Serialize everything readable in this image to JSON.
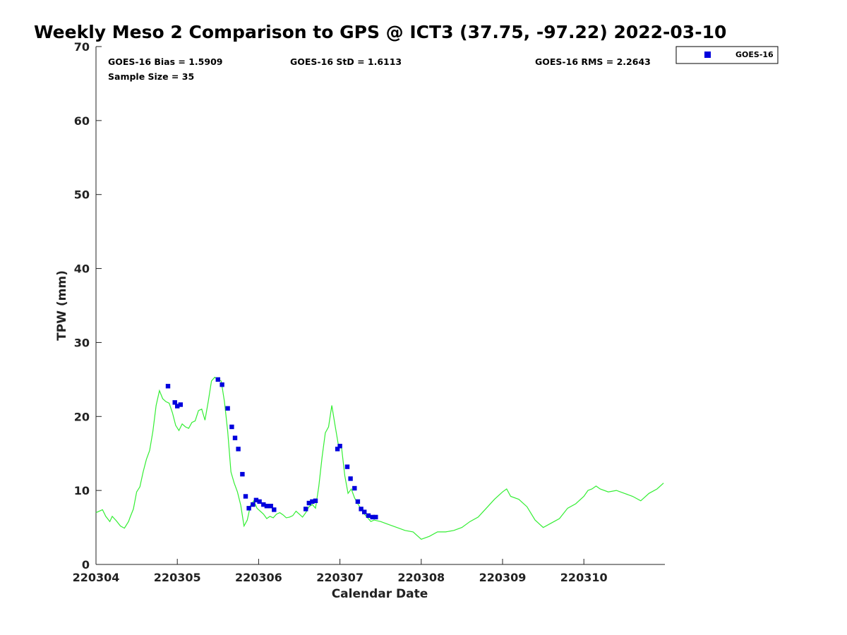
{
  "chart_data": {
    "type": "scatter",
    "title": "Weekly Meso 2 Comparison to GPS @ ICT3 (37.75, -97.22) 2022-03-10",
    "xlabel": "Calendar Date",
    "ylabel": "TPW (mm)",
    "xlim": [
      "220304",
      "220311"
    ],
    "ylim": [
      0,
      70
    ],
    "x_tick_labels": [
      "220304",
      "220305",
      "220306",
      "220307",
      "220308",
      "220309",
      "220310"
    ],
    "y_tick_labels": [
      "0",
      "10",
      "20",
      "30",
      "40",
      "50",
      "60",
      "70"
    ],
    "grid": false,
    "legend_position": "top-right",
    "stats": {
      "bias": "GOES-16 Bias = 1.5909",
      "std": "GOES-16 StD = 1.6113",
      "rms": "GOES-16 RMS = 2.2643",
      "sample_size": "Sample Size = 35"
    },
    "series": [
      {
        "name": "GOES-16",
        "type": "scatter",
        "color": "#0000dd",
        "marker": "square",
        "x_days": [
          0.885,
          0.97,
          1.0,
          1.04,
          1.5,
          1.55,
          1.62,
          1.67,
          1.71,
          1.75,
          1.8,
          1.84,
          1.88,
          1.93,
          1.97,
          2.01,
          2.06,
          2.1,
          2.15,
          2.19,
          2.58,
          2.62,
          2.66,
          2.7,
          2.97,
          3.0,
          3.09,
          3.13,
          3.18,
          3.22,
          3.26,
          3.3,
          3.35,
          3.4,
          3.44
        ],
        "values": [
          24.1,
          21.9,
          21.4,
          21.6,
          25.0,
          24.3,
          21.1,
          18.6,
          17.1,
          15.6,
          12.2,
          9.2,
          7.6,
          8.1,
          8.7,
          8.5,
          8.1,
          7.9,
          7.9,
          7.4,
          7.5,
          8.3,
          8.5,
          8.6,
          15.6,
          16.0,
          13.2,
          11.6,
          10.3,
          8.5,
          7.5,
          7.1,
          6.6,
          6.4,
          6.4
        ]
      },
      {
        "name": "GPS",
        "type": "line",
        "color": "#33ee33",
        "x_days": [
          0.0,
          0.08,
          0.12,
          0.17,
          0.2,
          0.25,
          0.3,
          0.35,
          0.4,
          0.42,
          0.46,
          0.5,
          0.54,
          0.58,
          0.62,
          0.66,
          0.7,
          0.74,
          0.78,
          0.82,
          0.86,
          0.9,
          0.94,
          0.98,
          1.02,
          1.06,
          1.1,
          1.14,
          1.18,
          1.22,
          1.26,
          1.3,
          1.34,
          1.38,
          1.42,
          1.46,
          1.5,
          1.54,
          1.58,
          1.62,
          1.66,
          1.7,
          1.74,
          1.78,
          1.82,
          1.86,
          1.9,
          1.94,
          1.98,
          2.02,
          2.06,
          2.1,
          2.14,
          2.18,
          2.22,
          2.26,
          2.3,
          2.34,
          2.38,
          2.42,
          2.46,
          2.5,
          2.54,
          2.58,
          2.62,
          2.66,
          2.7,
          2.74,
          2.78,
          2.82,
          2.86,
          2.9,
          2.94,
          2.98,
          3.02,
          3.06,
          3.1,
          3.14,
          3.18,
          3.22,
          3.26,
          3.3,
          3.34,
          3.38,
          3.42,
          3.5,
          3.6,
          3.7,
          3.8,
          3.9,
          4.0,
          4.1,
          4.2,
          4.3,
          4.4,
          4.5,
          4.6,
          4.7,
          4.8,
          4.9,
          5.0,
          5.05,
          5.1,
          5.2,
          5.3,
          5.4,
          5.5,
          5.6,
          5.7,
          5.8,
          5.9,
          6.0,
          6.05,
          6.1,
          6.15,
          6.2,
          6.3,
          6.4,
          6.5,
          6.6,
          6.7,
          6.8,
          6.9,
          6.98
        ],
        "values": [
          7.0,
          7.4,
          6.5,
          5.8,
          6.5,
          5.9,
          5.2,
          4.9,
          5.8,
          6.4,
          7.5,
          9.8,
          10.5,
          12.5,
          14.2,
          15.4,
          18.0,
          21.5,
          23.5,
          22.4,
          22.0,
          21.8,
          20.5,
          18.8,
          18.1,
          19.0,
          18.6,
          18.4,
          19.2,
          19.4,
          20.8,
          21.0,
          19.5,
          22.0,
          24.8,
          25.3,
          25.0,
          24.8,
          22.0,
          18.0,
          12.5,
          11.0,
          9.8,
          8.0,
          5.2,
          6.0,
          8.0,
          8.6,
          7.6,
          7.2,
          6.8,
          6.2,
          6.5,
          6.3,
          6.8,
          7.0,
          6.7,
          6.3,
          6.4,
          6.6,
          7.2,
          6.8,
          6.4,
          7.0,
          7.8,
          8.1,
          7.6,
          10.5,
          14.5,
          17.8,
          18.6,
          21.5,
          18.8,
          16.2,
          15.8,
          12.0,
          9.6,
          10.2,
          9.0,
          8.2,
          7.5,
          6.8,
          6.3,
          5.8,
          6.0,
          5.8,
          5.4,
          5.0,
          4.6,
          4.4,
          3.4,
          3.8,
          4.4,
          4.4,
          4.6,
          5.0,
          5.8,
          6.4,
          7.6,
          8.8,
          9.8,
          10.2,
          9.2,
          8.8,
          7.8,
          6.0,
          5.0,
          5.6,
          6.2,
          7.6,
          8.2,
          9.2,
          10.0,
          10.2,
          10.6,
          10.2,
          9.8,
          10.0,
          9.6,
          9.2,
          8.6,
          9.6,
          10.2,
          11.0
        ]
      }
    ]
  }
}
